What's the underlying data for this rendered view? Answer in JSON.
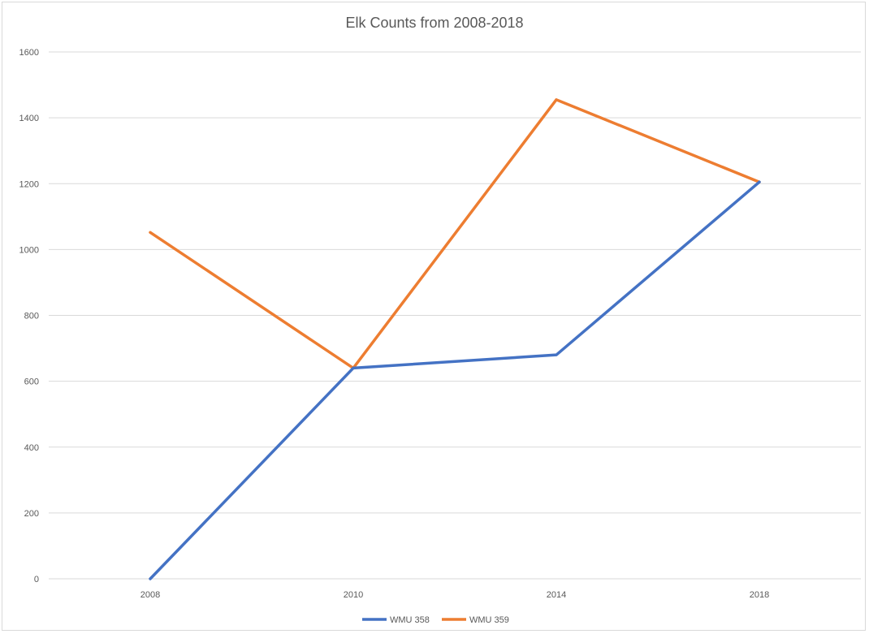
{
  "chart_data": {
    "type": "line",
    "title": "Elk Counts from 2008-2018",
    "xlabel": "",
    "ylabel": "",
    "categories": [
      "2008",
      "2010",
      "2014",
      "2018"
    ],
    "ylim": [
      0,
      1600
    ],
    "yticks": [
      0,
      200,
      400,
      600,
      800,
      1000,
      1200,
      1400,
      1600
    ],
    "grid": true,
    "legend": "bottom",
    "series": [
      {
        "name": "WMU 358",
        "color": "#4472c4",
        "values": [
          0,
          640,
          680,
          1205
        ]
      },
      {
        "name": "WMU 359",
        "color": "#ed7d31",
        "values": [
          1052,
          640,
          1455,
          1205
        ]
      }
    ]
  }
}
